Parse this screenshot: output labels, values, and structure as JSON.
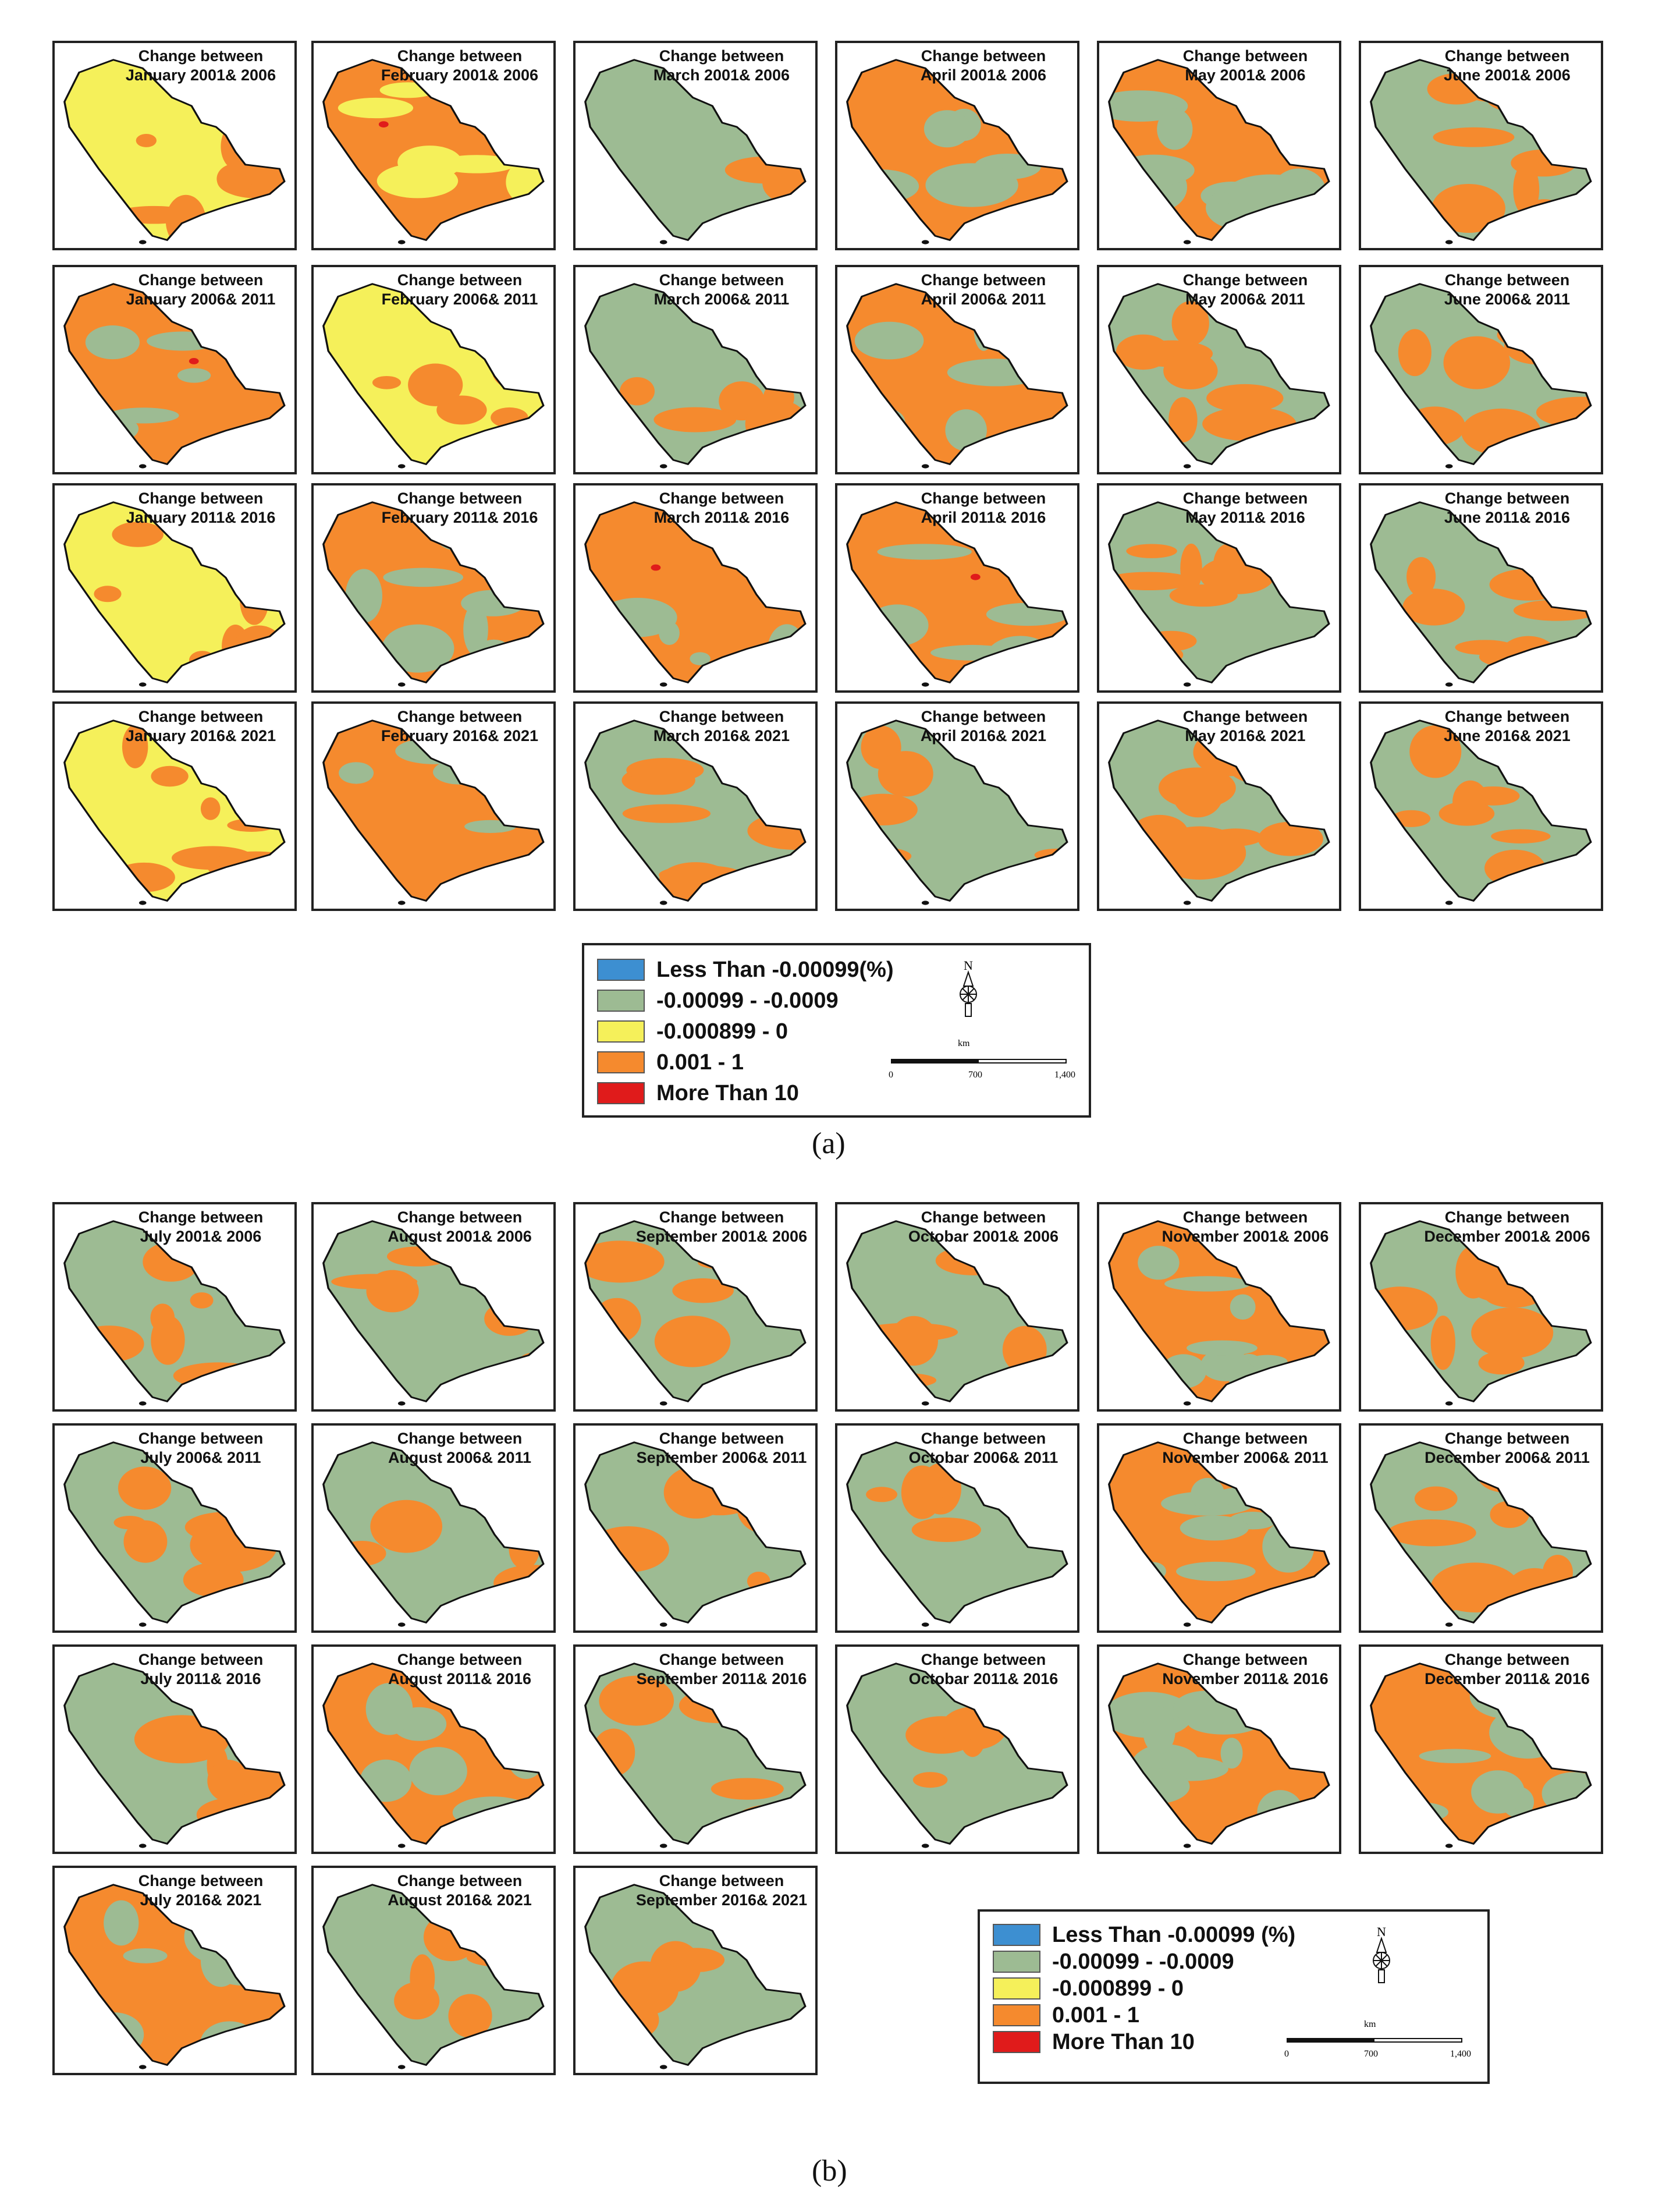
{
  "colors": {
    "less_than": "#3d8fd1",
    "neg_small": "#9dbb93",
    "neg_tiny": "#f5f05a",
    "positive": "#f58a2e",
    "more_than_10": "#e01b1b"
  },
  "legend_a": {
    "items": [
      {
        "label": "Less Than -0.00099(%)",
        "color_key": "less_than"
      },
      {
        "label": "-0.00099 - -0.0009",
        "color_key": "neg_small"
      },
      {
        "label": "-0.000899 - 0",
        "color_key": "neg_tiny"
      },
      {
        "label": "0.001 - 1",
        "color_key": "positive"
      },
      {
        "label": "More Than 10",
        "color_key": "more_than_10"
      }
    ],
    "scale_unit": "km",
    "scale_ticks": [
      "0",
      "700",
      "1,400"
    ]
  },
  "legend_b": {
    "items": [
      {
        "label": "Less Than -0.00099 (%)",
        "color_key": "less_than"
      },
      {
        "label": "-0.00099 - -0.0009",
        "color_key": "neg_small"
      },
      {
        "label": "-0.000899 - 0",
        "color_key": "neg_tiny"
      },
      {
        "label": "0.001 - 1",
        "color_key": "positive"
      },
      {
        "label": "More Than 10",
        "color_key": "more_than_10"
      }
    ],
    "scale_unit": "km",
    "scale_ticks": [
      "0",
      "700",
      "1,400"
    ]
  },
  "subfigure_labels": {
    "a": "(a)",
    "b": "(b)"
  },
  "panels_a": [
    {
      "title1": "Change between",
      "title2": "January 2001& 2006",
      "base": "neg_tiny",
      "accent": "positive",
      "pattern": 1,
      "red": false
    },
    {
      "title1": "Change between",
      "title2": "February 2001& 2006",
      "base": "positive",
      "accent": "neg_tiny",
      "pattern": 2,
      "red": true
    },
    {
      "title1": "Change between",
      "title2": "March 2001& 2006",
      "base": "neg_small",
      "accent": "positive",
      "pattern": 3,
      "red": false
    },
    {
      "title1": "Change between",
      "title2": "April  2001& 2006",
      "base": "positive",
      "accent": "neg_small",
      "pattern": 4,
      "red": false
    },
    {
      "title1": "Change between",
      "title2": "May 2001& 2006",
      "base": "positive",
      "accent": "neg_small",
      "pattern": 5,
      "red": false
    },
    {
      "title1": "Change between",
      "title2": "June 2001& 2006",
      "base": "neg_small",
      "accent": "positive",
      "pattern": 6,
      "red": false
    },
    {
      "title1": "Change between",
      "title2": "January 2006& 2011",
      "base": "positive",
      "accent": "neg_small",
      "pattern": 7,
      "red": true
    },
    {
      "title1": "Change between",
      "title2": "February  2006& 2011",
      "base": "neg_tiny",
      "accent": "positive",
      "pattern": 8,
      "red": false
    },
    {
      "title1": "Change between",
      "title2": "March 2006& 2011",
      "base": "neg_small",
      "accent": "positive",
      "pattern": 9,
      "red": false
    },
    {
      "title1": "Change between",
      "title2": "April  2006& 2011",
      "base": "positive",
      "accent": "neg_small",
      "pattern": 10,
      "red": false
    },
    {
      "title1": "Change between",
      "title2": "May 2006& 2011",
      "base": "neg_small",
      "accent": "positive",
      "pattern": 11,
      "red": false
    },
    {
      "title1": "Change between",
      "title2": "June 2006& 2011",
      "base": "neg_small",
      "accent": "positive",
      "pattern": 12,
      "red": false
    },
    {
      "title1": "Change between",
      "title2": "January 2011& 2016",
      "base": "neg_tiny",
      "accent": "positive",
      "pattern": 13,
      "red": false
    },
    {
      "title1": "Change between",
      "title2": "February  2011& 2016",
      "base": "positive",
      "accent": "neg_small",
      "pattern": 14,
      "red": false
    },
    {
      "title1": "Change between",
      "title2": "March 2011& 2016",
      "base": "positive",
      "accent": "neg_small",
      "pattern": 15,
      "red": true
    },
    {
      "title1": "Change between",
      "title2": "April  2011& 2016",
      "base": "positive",
      "accent": "neg_small",
      "pattern": 16,
      "red": true
    },
    {
      "title1": "Change between",
      "title2": "May 2011& 2016",
      "base": "neg_small",
      "accent": "positive",
      "pattern": 17,
      "red": false
    },
    {
      "title1": "Change between",
      "title2": "June 2011& 2016",
      "base": "neg_small",
      "accent": "positive",
      "pattern": 18,
      "red": false
    },
    {
      "title1": "Change between",
      "title2": "January 2016& 2021",
      "base": "neg_tiny",
      "accent": "positive",
      "pattern": 19,
      "red": false
    },
    {
      "title1": "Change between",
      "title2": "February 2016& 2021",
      "base": "positive",
      "accent": "neg_small",
      "pattern": 20,
      "red": false
    },
    {
      "title1": "Change between",
      "title2": "March  2016& 2021",
      "base": "neg_small",
      "accent": "positive",
      "pattern": 21,
      "red": false
    },
    {
      "title1": "Change between",
      "title2": "April  2016& 2021",
      "base": "neg_small",
      "accent": "positive",
      "pattern": 22,
      "red": false
    },
    {
      "title1": "Change between",
      "title2": "May 2016& 2021",
      "base": "neg_small",
      "accent": "positive",
      "pattern": 23,
      "red": false
    },
    {
      "title1": "Change between",
      "title2": "June 2016& 2021",
      "base": "neg_small",
      "accent": "positive",
      "pattern": 24,
      "red": false
    }
  ],
  "panels_b": [
    {
      "title1": "Change between",
      "title2": "July 2001& 2006",
      "base": "neg_small",
      "accent": "positive",
      "pattern": 25,
      "red": false
    },
    {
      "title1": "Change between",
      "title2": "August 2001& 2006",
      "base": "neg_small",
      "accent": "positive",
      "pattern": 26,
      "red": false
    },
    {
      "title1": "Change between",
      "title2": "September  2001& 2006",
      "base": "neg_small",
      "accent": "positive",
      "pattern": 27,
      "red": false
    },
    {
      "title1": "Change between",
      "title2": "Octobar   2001& 2006",
      "base": "neg_small",
      "accent": "positive",
      "pattern": 28,
      "red": false
    },
    {
      "title1": "Change between",
      "title2": "November 2001& 2006",
      "base": "positive",
      "accent": "neg_small",
      "pattern": 29,
      "red": false
    },
    {
      "title1": "Change between",
      "title2": "December 2001& 2006",
      "base": "neg_small",
      "accent": "positive",
      "pattern": 30,
      "red": false
    },
    {
      "title1": "Change between",
      "title2": "July 2006& 2011",
      "base": "neg_small",
      "accent": "positive",
      "pattern": 31,
      "red": false
    },
    {
      "title1": "Change between",
      "title2": "August  2006& 2011",
      "base": "neg_small",
      "accent": "positive",
      "pattern": 32,
      "red": false
    },
    {
      "title1": "Change between",
      "title2": "September  2006& 2011",
      "base": "neg_small",
      "accent": "positive",
      "pattern": 33,
      "red": false
    },
    {
      "title1": "Change between",
      "title2": "Octobar   2006& 2011",
      "base": "neg_small",
      "accent": "positive",
      "pattern": 34,
      "red": false
    },
    {
      "title1": "Change between",
      "title2": "November 2006& 2011",
      "base": "positive",
      "accent": "neg_small",
      "pattern": 35,
      "red": false
    },
    {
      "title1": "Change between",
      "title2": "December 2006& 2011",
      "base": "neg_small",
      "accent": "positive",
      "pattern": 36,
      "red": false
    },
    {
      "title1": "Change between",
      "title2": "July 2011& 2016",
      "base": "neg_small",
      "accent": "positive",
      "pattern": 37,
      "red": false
    },
    {
      "title1": "Change between",
      "title2": "August  2011& 2016",
      "base": "positive",
      "accent": "neg_small",
      "pattern": 38,
      "red": false
    },
    {
      "title1": "Change between",
      "title2": "September 2011& 2016",
      "base": "neg_small",
      "accent": "positive",
      "pattern": 39,
      "red": false
    },
    {
      "title1": "Change between",
      "title2": "Octobar   2011& 2016",
      "base": "neg_small",
      "accent": "positive",
      "pattern": 40,
      "red": false
    },
    {
      "title1": "Change between",
      "title2": "November 2011& 2016",
      "base": "positive",
      "accent": "neg_small",
      "pattern": 41,
      "red": false
    },
    {
      "title1": "Change between",
      "title2": "December 2011& 2016",
      "base": "positive",
      "accent": "neg_small",
      "pattern": 42,
      "red": false
    },
    {
      "title1": "Change between",
      "title2": "July 2016& 2021",
      "base": "positive",
      "accent": "neg_small",
      "pattern": 43,
      "red": false
    },
    {
      "title1": "Change between",
      "title2": "August 2016& 2021",
      "base": "neg_small",
      "accent": "positive",
      "pattern": 44,
      "red": false
    },
    {
      "title1": "Change between",
      "title2": "September   2016& 2021",
      "base": "neg_small",
      "accent": "positive",
      "pattern": 45,
      "red": false
    }
  ]
}
